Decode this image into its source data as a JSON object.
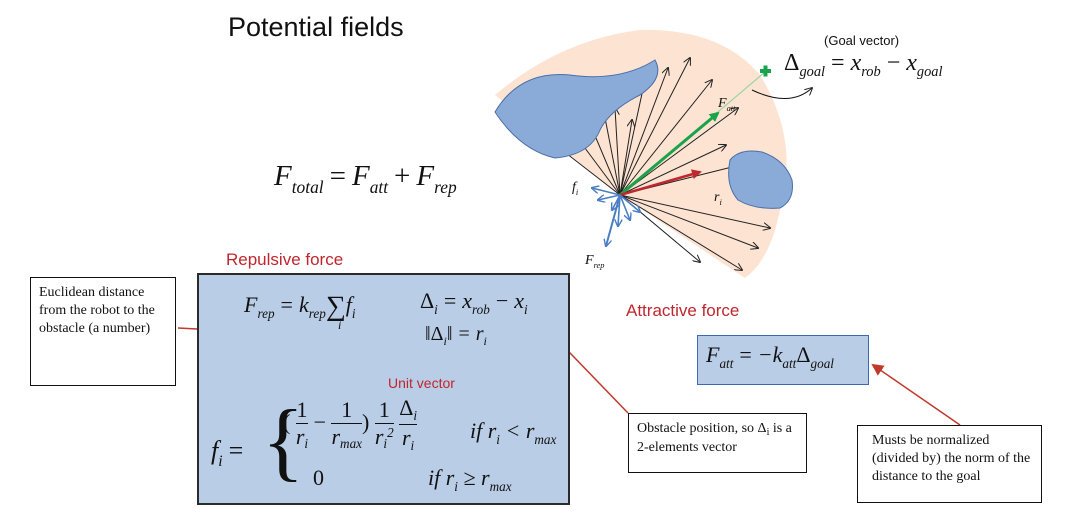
{
  "title": "Potential fields",
  "goal_vector_label": "(Goal vector)",
  "goal_equation": {
    "lhs": "Δ",
    "lhs_sub": "goal",
    "eq": "=",
    "x": "x",
    "rob": "rob",
    "minus": "−",
    "x2": "x",
    "goal": "goal"
  },
  "total_equation": {
    "F": "F",
    "total": "total",
    "eq": "=",
    "Fa": "F",
    "att": "att",
    "plus": "+",
    "Fr": "F",
    "rep": "rep"
  },
  "repulsive_heading": "Repulsive force",
  "attractive_heading": "Attractive force",
  "unit_vector_label": "Unit vector",
  "diagram_labels": {
    "f_i": "f",
    "f_i_sub": "i",
    "F_rep": "F",
    "F_rep_sub": "rep",
    "F_att": "F",
    "F_att_sub": "att",
    "r_i": "r",
    "r_i_sub": "i"
  },
  "notes": {
    "euclidean": "Euclidean distance from the robot to the obstacle (a number)",
    "obstacle": "Obstacle position, so Δ",
    "obstacle_sub": "i",
    "obstacle_rest": "is a 2-elements vector",
    "normalized": "Musts be normalized (divided by) the norm of the distance to the goal"
  },
  "colors": {
    "heading_red": "#c0262d",
    "box_fill": "#b9cde6",
    "obstacle_fill": "#8aaad8",
    "field_fill": "#fde3d2",
    "att_arrow": "#1aa34a",
    "total_arrow": "#c0262d",
    "rep_arrow": "#4a7ec4"
  }
}
